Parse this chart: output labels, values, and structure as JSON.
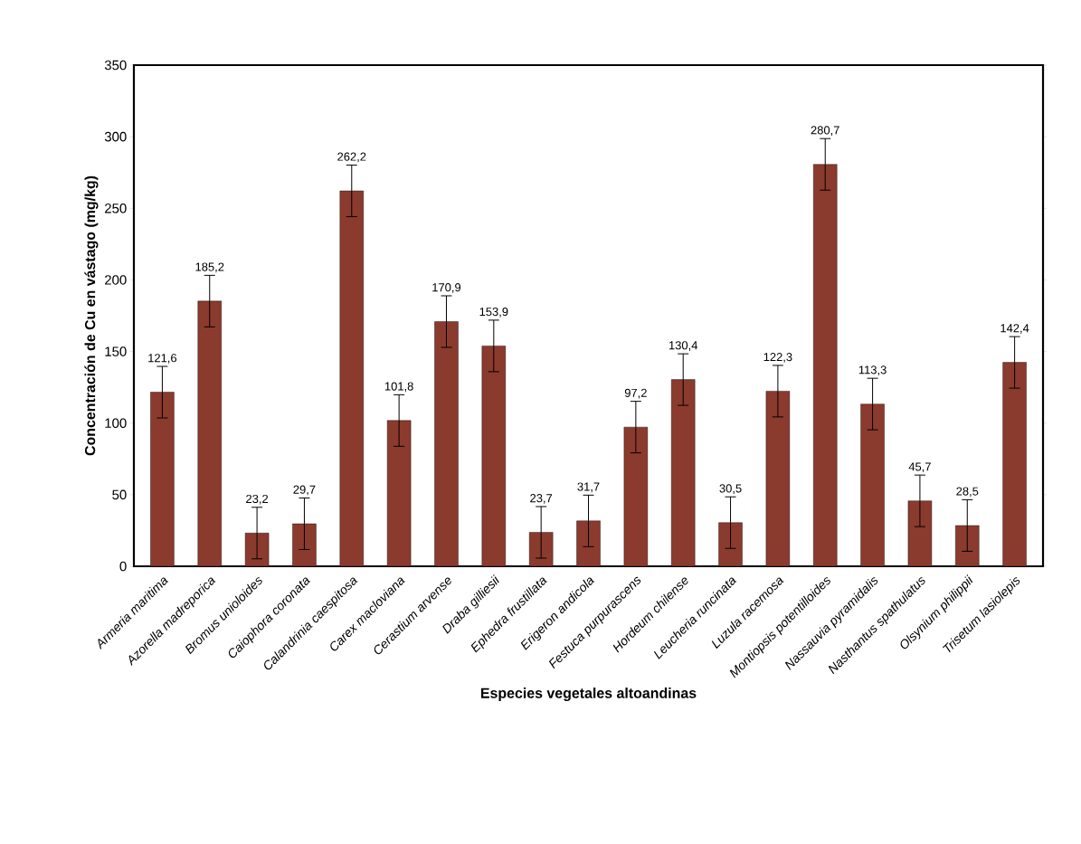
{
  "chart_data": {
    "type": "bar",
    "xlabel": "Especies vegetales altoandinas",
    "ylabel": "Concentración de Cu en vástago (mg/kg)",
    "categories": [
      "Armeria maritima",
      "Azorella madreporica",
      "Bromus unioloides",
      "Caiophora coronata",
      "Calandrinia caespitosa",
      "Carex macloviana",
      "Cerastium arvense",
      "Draba gilliesii",
      "Ephedra frustillata",
      "Erigeron andicola",
      "Festuca purpurascens",
      "Hordeum chilense",
      "Leucheria runcinata",
      "Luzula racemosa",
      "Montiopsis potentilloides",
      "Nassauvia pyramidalis",
      "Nasthantus spathulatus",
      "Olsynium philippii",
      "Trisetum lasiolepis"
    ],
    "values": [
      121.6,
      185.2,
      23.2,
      29.7,
      262.2,
      101.8,
      170.9,
      153.9,
      23.7,
      31.7,
      97.2,
      130.4,
      30.5,
      122.3,
      280.7,
      113.3,
      45.7,
      28.5,
      142.4
    ],
    "value_labels": [
      "121,6",
      "185,2",
      "23,2",
      "29,7",
      "262,2",
      "101,8",
      "170,9",
      "153,9",
      "23,7",
      "31,7",
      "97,2",
      "130,4",
      "30,5",
      "122,3",
      "280,7",
      "113,3",
      "45,7",
      "28,5",
      "142,4"
    ],
    "errors": [
      18,
      18,
      18,
      18,
      18,
      18,
      18,
      18,
      18,
      18,
      18,
      18,
      18,
      18,
      18,
      18,
      18,
      18,
      18
    ],
    "color": "#8b3a2e",
    "ylim": [
      0,
      350
    ],
    "yticks": [
      0,
      50,
      100,
      150,
      200,
      250,
      300,
      350
    ],
    "grid": false
  }
}
